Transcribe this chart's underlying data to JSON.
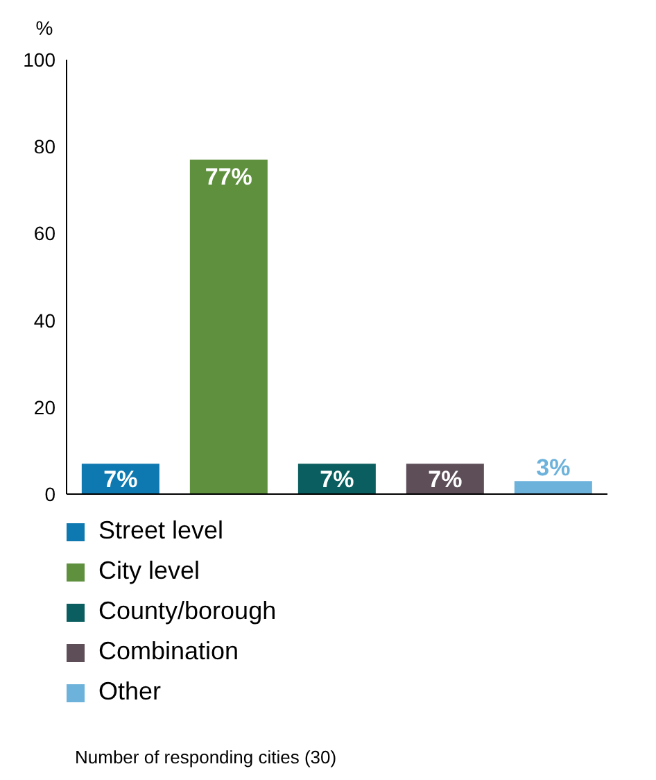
{
  "chart_data": {
    "type": "bar",
    "ylabel": "%",
    "categories": [
      null,
      null,
      null,
      null,
      null
    ],
    "stacked": true,
    "series": [
      {
        "name": "Street level",
        "color": "#0e78b0",
        "values": [
          7,
          null,
          null,
          null,
          null
        ],
        "value_labels": [
          "7%",
          null,
          null,
          null,
          null
        ]
      },
      {
        "name": "City level",
        "color": "#5e903e",
        "values": [
          null,
          77,
          null,
          null,
          null
        ],
        "value_labels": [
          null,
          "77%",
          null,
          null,
          null
        ]
      },
      {
        "name": "County/borough",
        "color": "#0b5e5f",
        "values": [
          null,
          null,
          7,
          null,
          null
        ],
        "value_labels": [
          null,
          null,
          "7%",
          null,
          null
        ]
      },
      {
        "name": "Combination",
        "color": "#5d4e58",
        "values": [
          null,
          null,
          null,
          7,
          null
        ],
        "value_labels": [
          null,
          null,
          null,
          "7%",
          null
        ]
      },
      {
        "name": "Other",
        "color": "#6cb2db",
        "values": [
          null,
          null,
          null,
          null,
          3
        ],
        "value_labels": [
          null,
          null,
          null,
          null,
          "3%"
        ]
      }
    ],
    "ylim": [
      0,
      100
    ],
    "yticks": [
      0,
      20,
      40,
      60,
      80,
      100
    ],
    "legend": "bottom",
    "grid": false,
    "tick_labels": "y",
    "annotations": [
      "Number of responding cities (30)"
    ]
  }
}
